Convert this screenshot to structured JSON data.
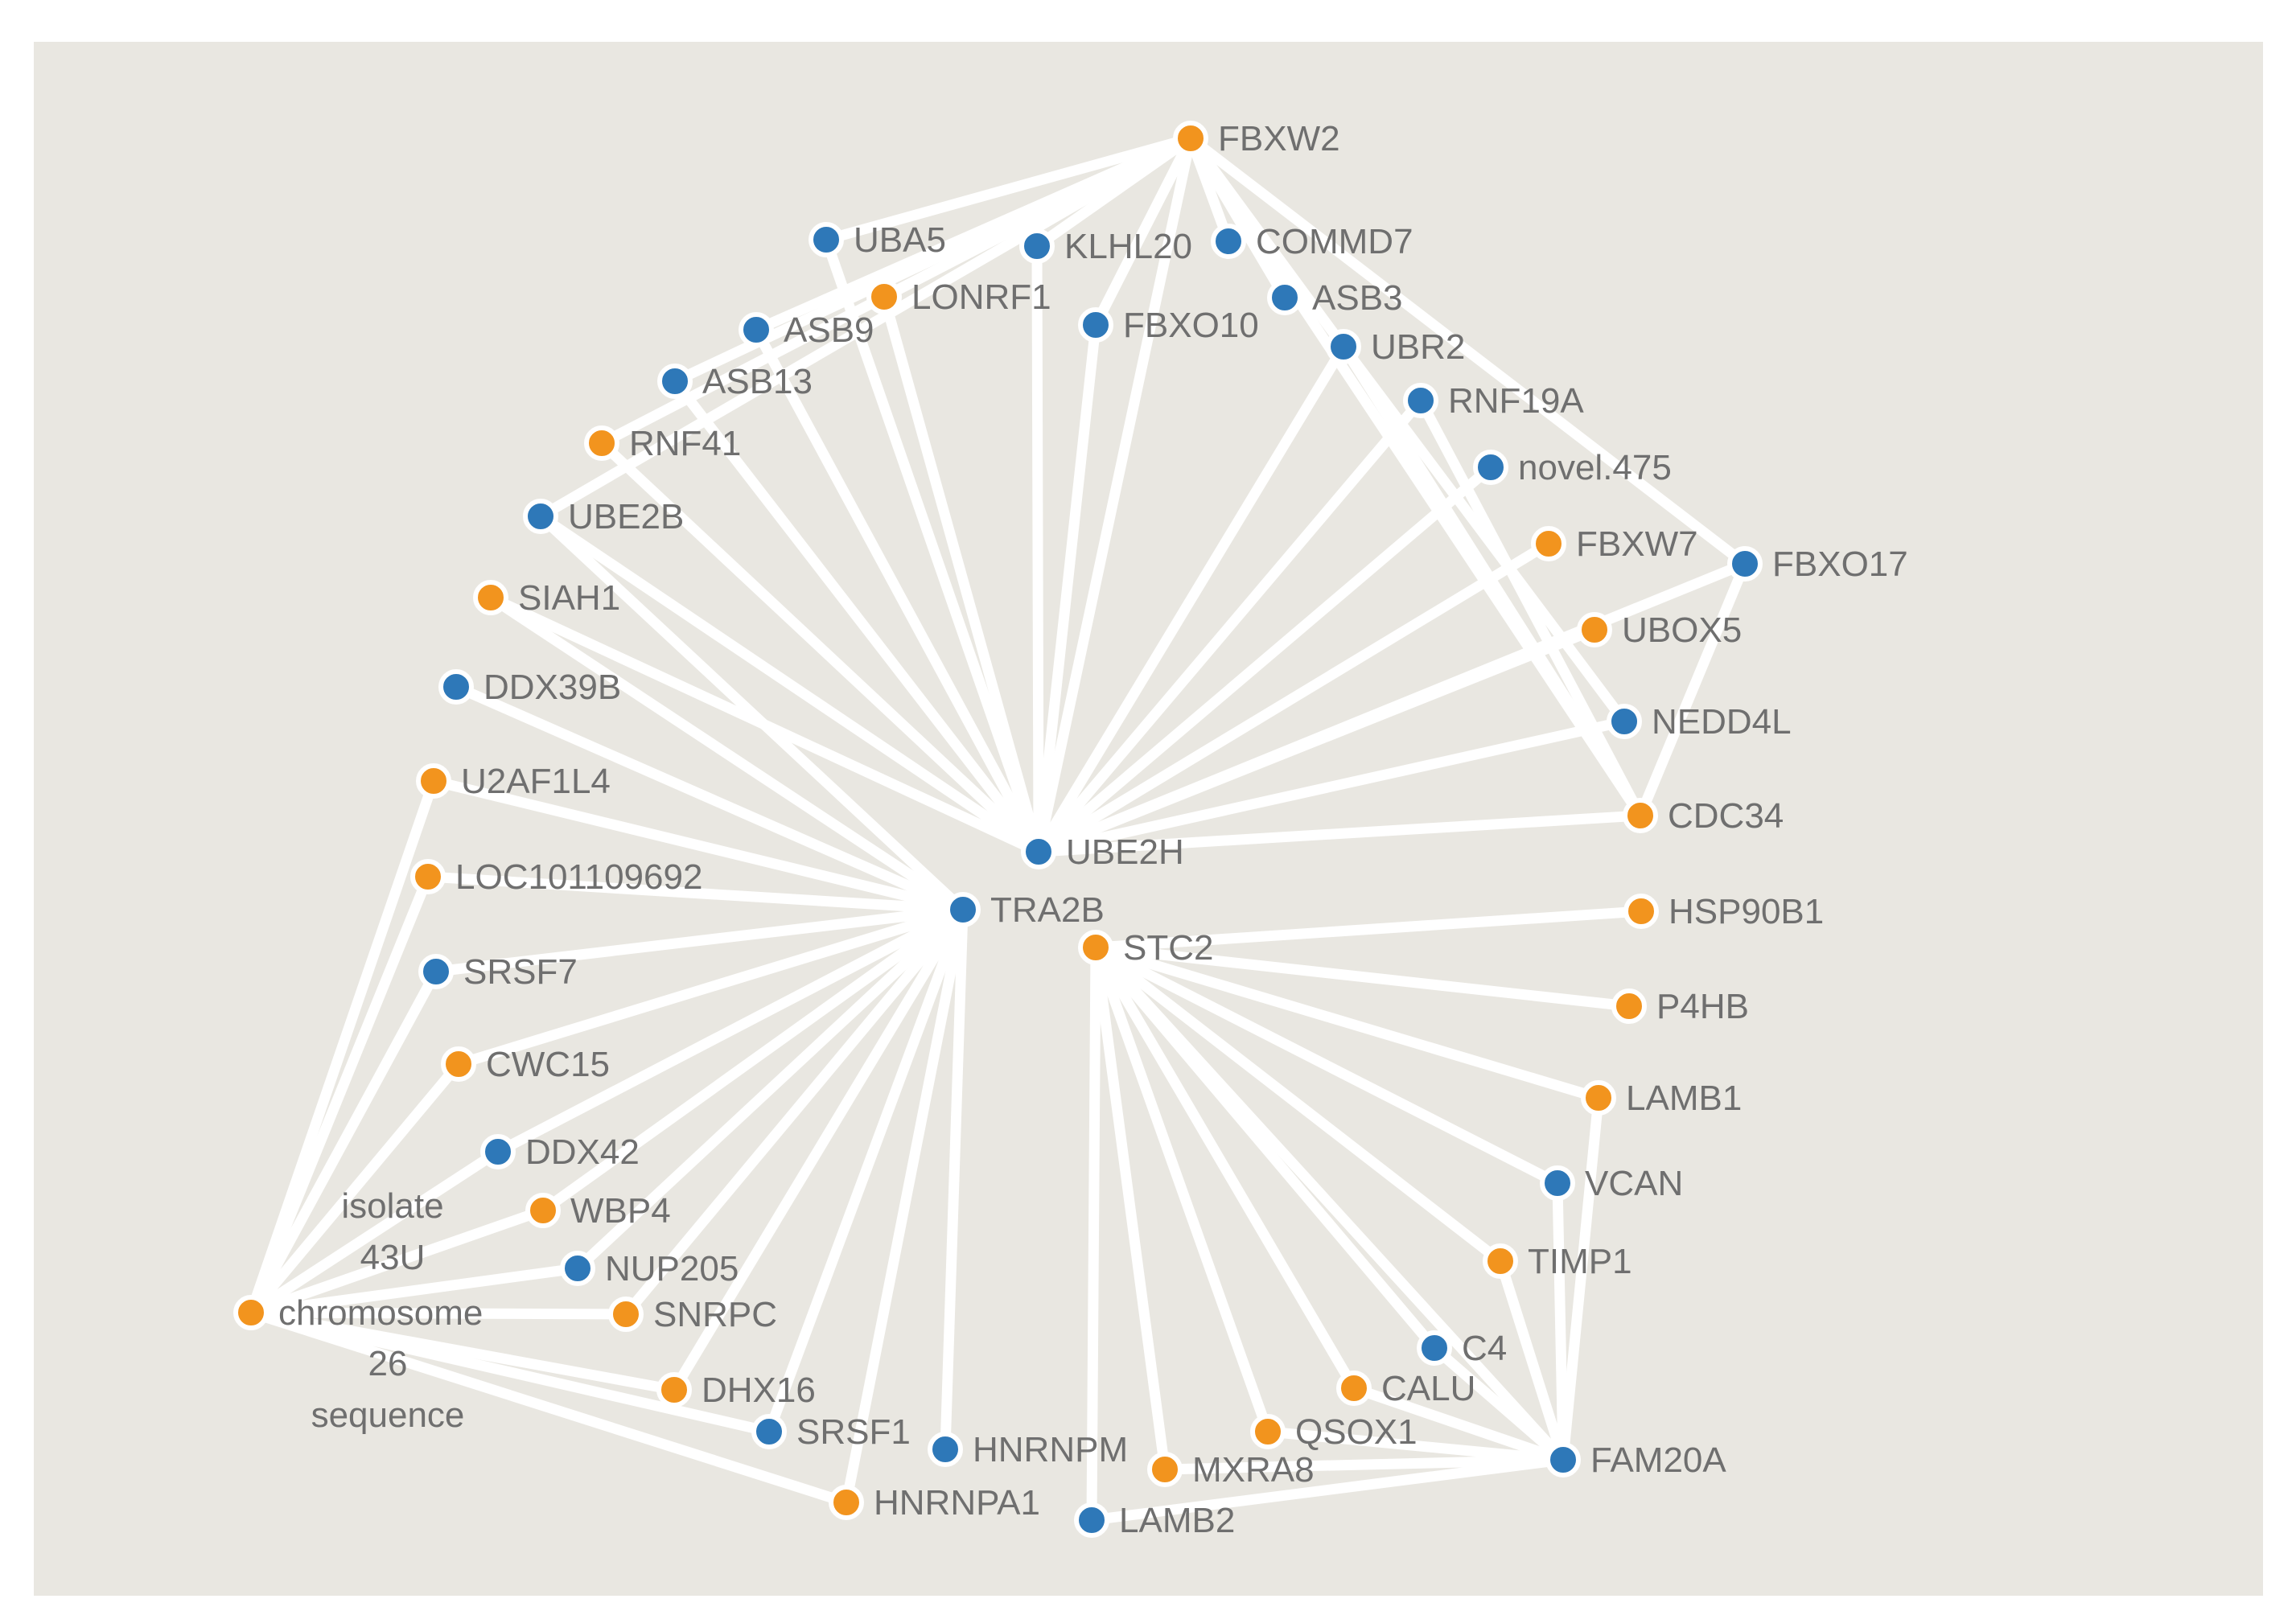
{
  "colors": {
    "background": "#e9e7e1",
    "edge": "#ffffff",
    "blue": "#2e78b8",
    "orange": "#f2941e",
    "label": "#6f6f6f"
  },
  "nodes": [
    {
      "id": "FBXW2",
      "label": "FBXW2",
      "color": "orange"
    },
    {
      "id": "UBA5",
      "label": "UBA5",
      "color": "blue"
    },
    {
      "id": "KLHL20",
      "label": "KLHL20",
      "color": "blue"
    },
    {
      "id": "COMMD7",
      "label": "COMMD7",
      "color": "blue"
    },
    {
      "id": "LONRF1",
      "label": "LONRF1",
      "color": "orange"
    },
    {
      "id": "ASB9",
      "label": "ASB9",
      "color": "blue"
    },
    {
      "id": "FBXO10",
      "label": "FBXO10",
      "color": "blue"
    },
    {
      "id": "ASB3",
      "label": "ASB3",
      "color": "blue"
    },
    {
      "id": "UBR2",
      "label": "UBR2",
      "color": "blue"
    },
    {
      "id": "ASB13",
      "label": "ASB13",
      "color": "blue"
    },
    {
      "id": "RNF19A",
      "label": "RNF19A",
      "color": "blue"
    },
    {
      "id": "RNF41",
      "label": "RNF41",
      "color": "orange"
    },
    {
      "id": "novel475",
      "label": "novel.475",
      "color": "blue"
    },
    {
      "id": "UBE2B",
      "label": "UBE2B",
      "color": "blue"
    },
    {
      "id": "FBXW7",
      "label": "FBXW7",
      "color": "orange"
    },
    {
      "id": "FBXO17",
      "label": "FBXO17",
      "color": "blue"
    },
    {
      "id": "SIAH1",
      "label": "SIAH1",
      "color": "orange"
    },
    {
      "id": "UBOX5",
      "label": "UBOX5",
      "color": "orange"
    },
    {
      "id": "DDX39B",
      "label": "DDX39B",
      "color": "blue"
    },
    {
      "id": "NEDD4L",
      "label": "NEDD4L",
      "color": "blue"
    },
    {
      "id": "U2AF1L4",
      "label": "U2AF1L4",
      "color": "orange"
    },
    {
      "id": "CDC34",
      "label": "CDC34",
      "color": "orange"
    },
    {
      "id": "UBE2H",
      "label": "UBE2H",
      "color": "blue"
    },
    {
      "id": "LOC101109692",
      "label": "LOC101109692",
      "color": "orange"
    },
    {
      "id": "TRA2B",
      "label": "TRA2B",
      "color": "blue"
    },
    {
      "id": "HSP90B1",
      "label": "HSP90B1",
      "color": "orange"
    },
    {
      "id": "STC2",
      "label": "STC2",
      "color": "orange"
    },
    {
      "id": "SRSF7",
      "label": "SRSF7",
      "color": "blue"
    },
    {
      "id": "P4HB",
      "label": "P4HB",
      "color": "orange"
    },
    {
      "id": "CWC15",
      "label": "CWC15",
      "color": "orange"
    },
    {
      "id": "LAMB1",
      "label": "LAMB1",
      "color": "orange"
    },
    {
      "id": "DDX42",
      "label": "DDX42",
      "color": "blue"
    },
    {
      "id": "VCAN",
      "label": "VCAN",
      "color": "blue"
    },
    {
      "id": "WBP4",
      "label": "WBP4",
      "color": "orange"
    },
    {
      "id": "TIMP1",
      "label": "TIMP1",
      "color": "orange"
    },
    {
      "id": "NUP205",
      "label": "NUP205",
      "color": "blue"
    },
    {
      "id": "chr",
      "label": "chromosome",
      "label_lines_above": [
        "isolate",
        "43U"
      ],
      "label_lines_below": [
        "26",
        "sequence"
      ],
      "color": "orange"
    },
    {
      "id": "SNRPC",
      "label": "SNRPC",
      "color": "orange"
    },
    {
      "id": "C4",
      "label": "C4",
      "color": "blue"
    },
    {
      "id": "DHX16",
      "label": "DHX16",
      "color": "orange"
    },
    {
      "id": "CALU",
      "label": "CALU",
      "color": "orange"
    },
    {
      "id": "SRSF1",
      "label": "SRSF1",
      "color": "blue"
    },
    {
      "id": "QSOX1",
      "label": "QSOX1",
      "color": "orange"
    },
    {
      "id": "HNRNPM",
      "label": "HNRNPM",
      "color": "blue"
    },
    {
      "id": "MXRA8",
      "label": "MXRA8",
      "color": "orange"
    },
    {
      "id": "FAM20A",
      "label": "FAM20A",
      "color": "blue"
    },
    {
      "id": "HNRNPA1",
      "label": "HNRNPA1",
      "color": "orange"
    },
    {
      "id": "LAMB2",
      "label": "LAMB2",
      "color": "blue"
    }
  ],
  "edges": [
    [
      "UBE2H",
      "FBXW2"
    ],
    [
      "UBE2H",
      "UBA5"
    ],
    [
      "UBE2H",
      "KLHL20"
    ],
    [
      "UBE2H",
      "LONRF1"
    ],
    [
      "UBE2H",
      "ASB9"
    ],
    [
      "UBE2H",
      "FBXO10"
    ],
    [
      "UBE2H",
      "UBR2"
    ],
    [
      "UBE2H",
      "ASB13"
    ],
    [
      "UBE2H",
      "RNF19A"
    ],
    [
      "UBE2H",
      "RNF41"
    ],
    [
      "UBE2H",
      "novel475"
    ],
    [
      "UBE2H",
      "UBE2B"
    ],
    [
      "UBE2H",
      "FBXW7"
    ],
    [
      "UBE2H",
      "FBXO17"
    ],
    [
      "UBE2H",
      "UBOX5"
    ],
    [
      "UBE2H",
      "NEDD4L"
    ],
    [
      "UBE2H",
      "CDC34"
    ],
    [
      "UBE2H",
      "SIAH1"
    ],
    [
      "FBXW2",
      "UBA5"
    ],
    [
      "FBXW2",
      "KLHL20"
    ],
    [
      "FBXW2",
      "COMMD7"
    ],
    [
      "FBXW2",
      "LONRF1"
    ],
    [
      "FBXW2",
      "ASB9"
    ],
    [
      "FBXW2",
      "FBXO10"
    ],
    [
      "FBXW2",
      "ASB3"
    ],
    [
      "FBXW2",
      "UBR2"
    ],
    [
      "FBXW2",
      "ASB13"
    ],
    [
      "FBXW2",
      "RNF41"
    ],
    [
      "FBXW2",
      "FBXO17"
    ],
    [
      "FBXW2",
      "UBE2B"
    ],
    [
      "UBR2",
      "CDC34"
    ],
    [
      "UBR2",
      "NEDD4L"
    ],
    [
      "RNF19A",
      "CDC34"
    ],
    [
      "FBXO17",
      "CDC34"
    ],
    [
      "FBXW2",
      "CDC34"
    ],
    [
      "TRA2B",
      "DDX39B"
    ],
    [
      "TRA2B",
      "U2AF1L4"
    ],
    [
      "TRA2B",
      "LOC101109692"
    ],
    [
      "TRA2B",
      "SRSF7"
    ],
    [
      "TRA2B",
      "CWC15"
    ],
    [
      "TRA2B",
      "DDX42"
    ],
    [
      "TRA2B",
      "WBP4"
    ],
    [
      "TRA2B",
      "NUP205"
    ],
    [
      "TRA2B",
      "SNRPC"
    ],
    [
      "TRA2B",
      "DHX16"
    ],
    [
      "TRA2B",
      "SRSF1"
    ],
    [
      "TRA2B",
      "HNRNPM"
    ],
    [
      "TRA2B",
      "HNRNPA1"
    ],
    [
      "TRA2B",
      "UBE2B"
    ],
    [
      "TRA2B",
      "SIAH1"
    ],
    [
      "chr",
      "U2AF1L4"
    ],
    [
      "chr",
      "LOC101109692"
    ],
    [
      "chr",
      "SRSF7"
    ],
    [
      "chr",
      "CWC15"
    ],
    [
      "chr",
      "DDX42"
    ],
    [
      "chr",
      "WBP4"
    ],
    [
      "chr",
      "NUP205"
    ],
    [
      "chr",
      "SNRPC"
    ],
    [
      "chr",
      "DHX16"
    ],
    [
      "chr",
      "SRSF1"
    ],
    [
      "chr",
      "HNRNPA1"
    ],
    [
      "STC2",
      "HSP90B1"
    ],
    [
      "STC2",
      "P4HB"
    ],
    [
      "STC2",
      "LAMB1"
    ],
    [
      "STC2",
      "VCAN"
    ],
    [
      "STC2",
      "TIMP1"
    ],
    [
      "STC2",
      "C4"
    ],
    [
      "STC2",
      "CALU"
    ],
    [
      "STC2",
      "QSOX1"
    ],
    [
      "STC2",
      "MXRA8"
    ],
    [
      "STC2",
      "FAM20A"
    ],
    [
      "STC2",
      "LAMB2"
    ],
    [
      "FAM20A",
      "LAMB1"
    ],
    [
      "FAM20A",
      "VCAN"
    ],
    [
      "FAM20A",
      "TIMP1"
    ],
    [
      "FAM20A",
      "C4"
    ],
    [
      "FAM20A",
      "CALU"
    ],
    [
      "FAM20A",
      "QSOX1"
    ],
    [
      "FAM20A",
      "MXRA8"
    ],
    [
      "FAM20A",
      "LAMB2"
    ]
  ]
}
